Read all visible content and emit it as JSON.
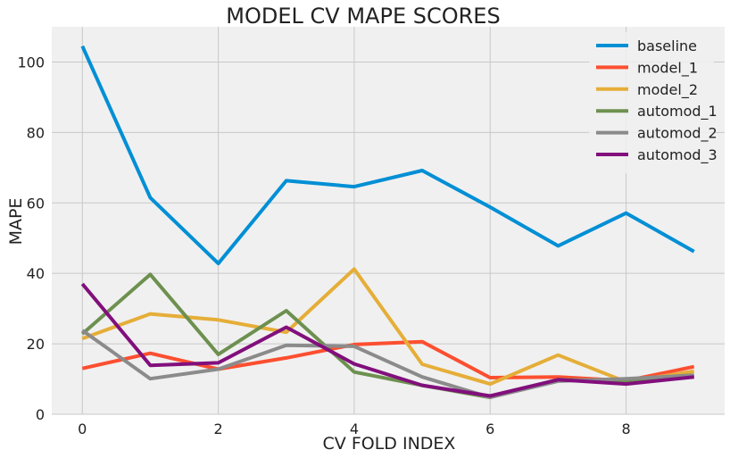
{
  "chart_data": {
    "type": "line",
    "title": "MODEL CV MAPE SCORES",
    "xlabel": "CV FOLD INDEX",
    "ylabel": "MAPE",
    "x": [
      0,
      1,
      2,
      3,
      4,
      5,
      6,
      7,
      8,
      9
    ],
    "xlim": [
      -0.45,
      9.45
    ],
    "ylim": [
      0,
      110
    ],
    "xticks": [
      0,
      2,
      4,
      6,
      8
    ],
    "yticks": [
      0,
      20,
      40,
      60,
      80,
      100
    ],
    "grid": true,
    "legend_position": "top-right",
    "series": [
      {
        "name": "baseline",
        "color": "#008fd5",
        "values": [
          104.5,
          61.5,
          42.8,
          66.3,
          64.6,
          69.2,
          58.8,
          47.8,
          57.1,
          46.2
        ]
      },
      {
        "name": "model_1",
        "color": "#fc4f30",
        "values": [
          13.0,
          17.3,
          12.8,
          16.0,
          19.8,
          20.6,
          10.4,
          10.6,
          9.5,
          13.5
        ]
      },
      {
        "name": "model_2",
        "color": "#e5ae38",
        "values": [
          21.5,
          28.5,
          26.8,
          23.3,
          41.2,
          14.2,
          8.6,
          16.8,
          9.2,
          12.2
        ]
      },
      {
        "name": "automod_1",
        "color": "#6d904f",
        "values": [
          22.8,
          39.7,
          17.0,
          29.4,
          12.0,
          8.2,
          4.8,
          9.8,
          9.5,
          10.9
        ]
      },
      {
        "name": "automod_2",
        "color": "#8b8b8b",
        "values": [
          23.8,
          10.1,
          12.8,
          19.6,
          19.3,
          10.6,
          4.8,
          9.4,
          10.1,
          11.1
        ]
      },
      {
        "name": "automod_3",
        "color": "#810f7c",
        "values": [
          37.0,
          13.9,
          14.6,
          24.7,
          14.3,
          8.2,
          5.2,
          9.8,
          8.6,
          10.6
        ]
      }
    ]
  }
}
